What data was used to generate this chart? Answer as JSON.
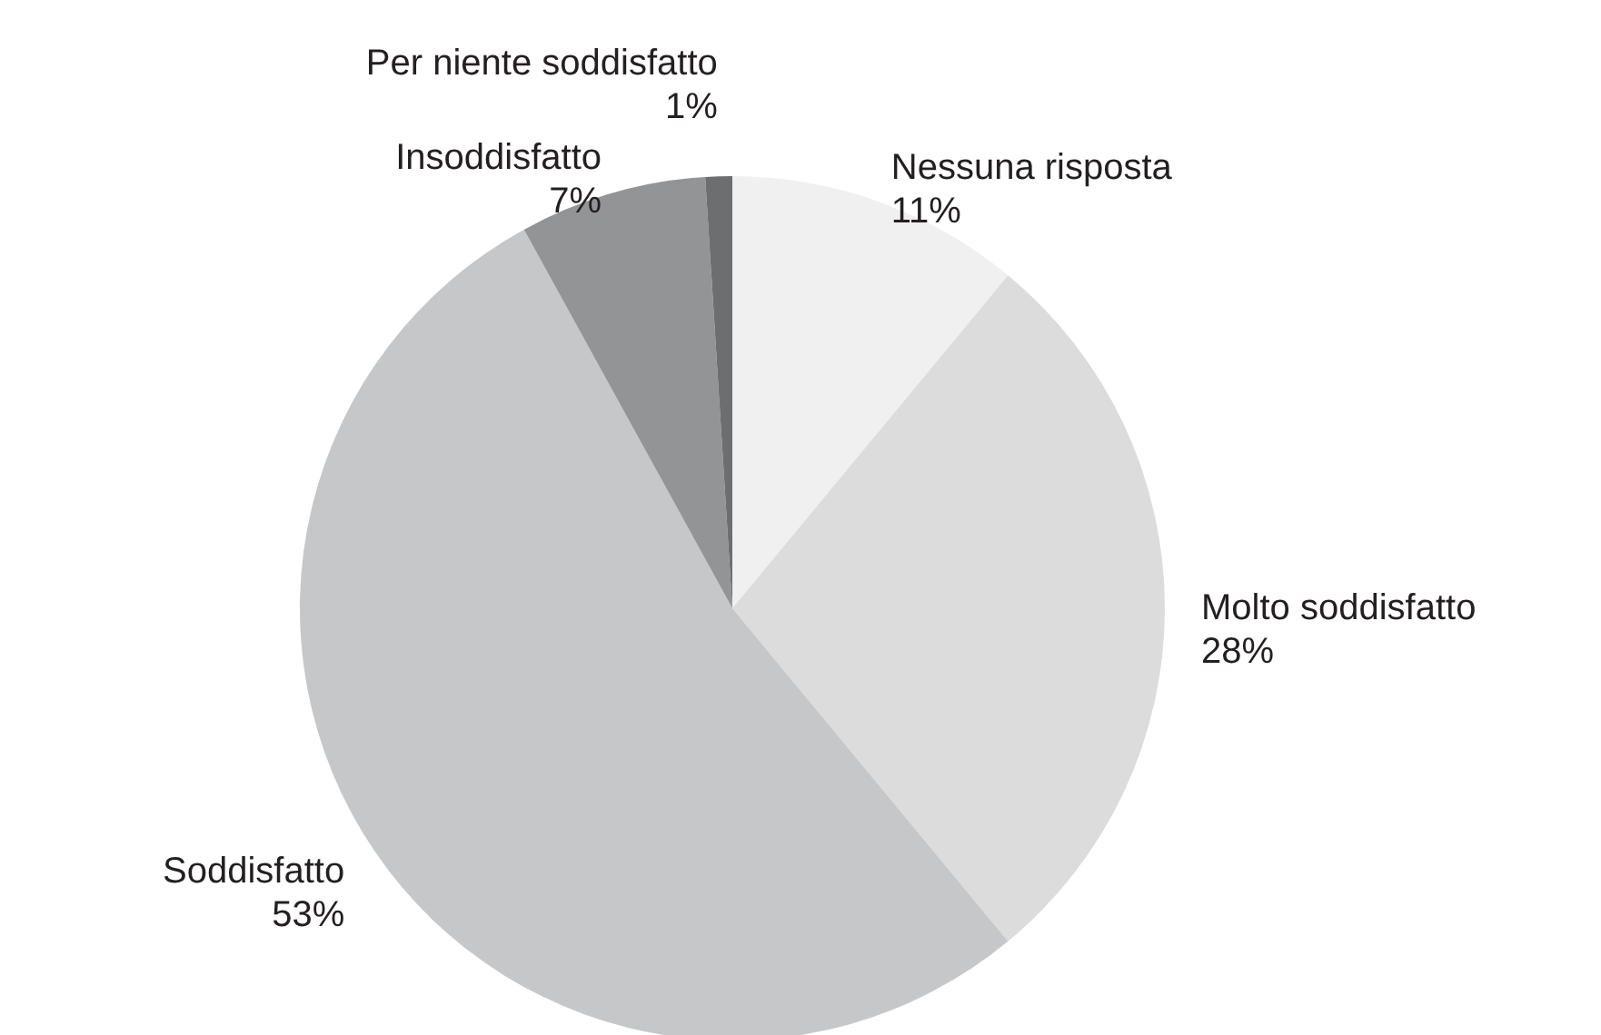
{
  "chart_data": {
    "type": "pie",
    "categories": [
      "Nessuna risposta",
      "Molto soddisfatto",
      "Soddisfatto",
      "Insoddisfatto",
      "Per niente soddisfatto"
    ],
    "values": [
      11,
      28,
      53,
      7,
      1
    ],
    "value_labels": [
      "11%",
      "28%",
      "53%",
      "7%",
      "1%"
    ],
    "colors": [
      "#f0f0f1",
      "#dcdcdd",
      "#c6c7c8",
      "#939496",
      "#6d6e70"
    ]
  }
}
